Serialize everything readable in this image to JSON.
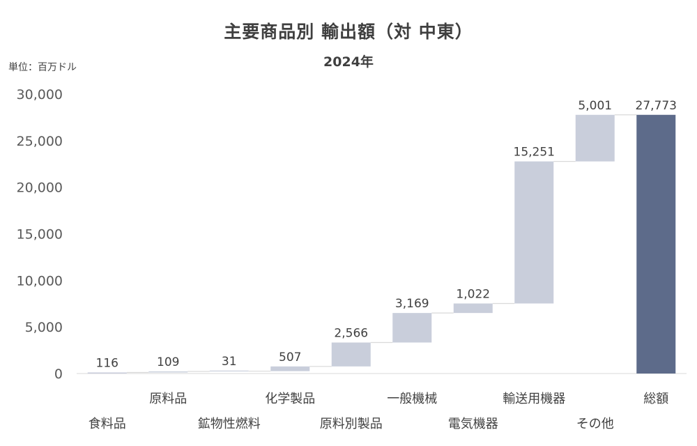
{
  "chart_data": {
    "type": "waterfall",
    "title": "主要商品別 輸出額（対 中東）",
    "subtitle": "2024年",
    "unit_label": "単位：百万ドル",
    "categories": [
      "食料品",
      "原料品",
      "鉱物性燃料",
      "化学製品",
      "原料別製品",
      "一般機械",
      "電気機器",
      "輸送用機器",
      "その他",
      "総額"
    ],
    "values": [
      116,
      109,
      31,
      507,
      2566,
      3169,
      1022,
      15251,
      5001,
      27773
    ],
    "value_labels": [
      "116",
      "109",
      "31",
      "507",
      "2,566",
      "3,169",
      "1,022",
      "15,251",
      "5,001",
      "27,773"
    ],
    "total_index": 9,
    "ylim": [
      0,
      30000
    ],
    "yticks": [
      0,
      5000,
      10000,
      15000,
      20000,
      25000,
      30000
    ],
    "ytick_labels": [
      "0",
      "5,000",
      "10,000",
      "15,000",
      "20,000",
      "25,000",
      "30,000"
    ],
    "colors": {
      "increment": "#c9cedb",
      "total": "#5d6b8a",
      "connector": "#d9d9d9",
      "axis": "#d9d9d9"
    },
    "grid": false,
    "legend": "none"
  }
}
